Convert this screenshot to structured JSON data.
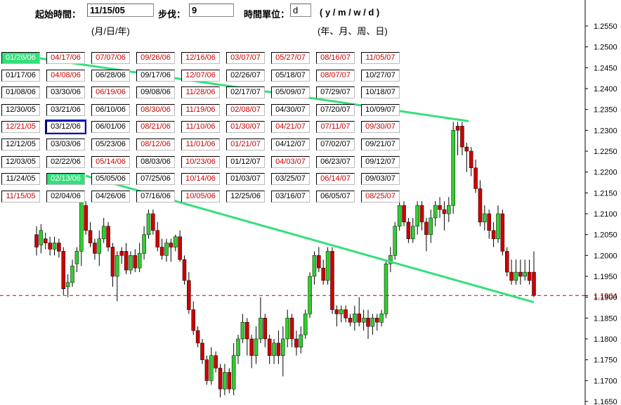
{
  "controls": {
    "start_label": "起始時間：",
    "start_value": "11/15/05",
    "start_hint": "(月/日/年)",
    "step_label": "步伐：",
    "step_value": "9",
    "unit_label": "時間單位：",
    "unit_value": "d",
    "unit_options": "( y / m / w / d )",
    "unit_hint": "(年、月、周、日)"
  },
  "date_grid": {
    "columns": [
      [
        "01/26/06",
        "01/17/06",
        "01/08/06",
        "12/30/05",
        "12/21/05",
        "12/12/05",
        "12/03/05",
        "11/24/05",
        "11/15/05"
      ],
      [
        "04/17/06",
        "04/08/06",
        "03/30/06",
        "03/21/06",
        "03/12/06",
        "03/03/06",
        "02/22/06",
        "02/13/06",
        "02/04/06"
      ],
      [
        "07/07/06",
        "06/28/06",
        "06/19/06",
        "06/10/06",
        "06/01/06",
        "05/23/06",
        "05/14/06",
        "05/05/06",
        "04/26/06"
      ],
      [
        "09/26/06",
        "09/17/06",
        "09/08/06",
        "08/30/06",
        "08/21/06",
        "08/12/06",
        "08/03/06",
        "07/25/06",
        "07/16/06"
      ],
      [
        "12/16/06",
        "12/07/06",
        "11/28/06",
        "11/19/06",
        "11/10/06",
        "11/01/06",
        "10/23/06",
        "10/14/06",
        "10/05/06"
      ],
      [
        "03/07/07",
        "02/26/07",
        "02/17/07",
        "02/08/07",
        "01/30/07",
        "01/21/07",
        "01/12/07",
        "01/03/07",
        "12/25/06"
      ],
      [
        "05/27/07",
        "05/18/07",
        "05/09/07",
        "04/30/07",
        "04/21/07",
        "04/12/07",
        "04/03/07",
        "03/25/07",
        "03/16/07"
      ],
      [
        "08/16/07",
        "08/07/07",
        "07/29/07",
        "07/20/07",
        "07/11/07",
        "07/02/07",
        "06/23/07",
        "06/14/07",
        "06/05/07"
      ],
      [
        "11/05/07",
        "10/27/07",
        "10/18/07",
        "10/09/07",
        "09/30/07",
        "09/21/07",
        "09/12/07",
        "09/03/07",
        "08/25/07"
      ]
    ],
    "red_cells": [
      "04/17/06",
      "07/07/06",
      "09/26/06",
      "12/16/06",
      "03/07/07",
      "05/27/07",
      "08/16/07",
      "11/05/07",
      "04/08/06",
      "12/07/06",
      "08/07/07",
      "06/19/06",
      "11/28/06",
      "08/30/06",
      "11/19/06",
      "02/08/07",
      "12/21/05",
      "08/21/06",
      "11/10/06",
      "01/30/07",
      "04/21/07",
      "07/11/07",
      "09/30/07",
      "08/12/06",
      "11/01/06",
      "01/21/07",
      "05/14/06",
      "10/23/06",
      "04/03/07",
      "10/14/06",
      "06/14/07",
      "11/15/05",
      "10/05/06",
      "08/25/07"
    ],
    "selected_cells": [
      "01/26/06",
      "02/13/06"
    ],
    "outlined_cell": "03/12/06",
    "selected_color": "#33e07a",
    "outline_color": "#0000cc",
    "red_color": "#cc0000"
  },
  "chart_data": {
    "type": "candlestick",
    "y_axis": {
      "side": "right",
      "min": 1.165,
      "max": 1.255,
      "tick_step": 0.005,
      "tick_labels": [
        "1.2550",
        "1.2500",
        "1.2450",
        "1.2400",
        "1.2350",
        "1.2300",
        "1.2250",
        "1.2200",
        "1.2150",
        "1.2100",
        "1.2050",
        "1.2000",
        "1.1950",
        "1.1904",
        "1.1900",
        "1.1850",
        "1.1800",
        "1.1750",
        "1.1700",
        "1.1650"
      ]
    },
    "current_price": 1.1904,
    "current_price_label": "1.1904",
    "current_price_color": "#cc0000",
    "up_color": "#33cc33",
    "down_color": "#cc0000",
    "trendlines": [
      {
        "from_date": "01/26/06",
        "from_price": 1.2475,
        "to_index": 130,
        "to_price": 1.2322,
        "color": "#33e07a"
      },
      {
        "from_date": "02/13/06",
        "from_price": 1.2205,
        "to_index": 148,
        "to_price": 1.1888,
        "color": "#33e07a"
      }
    ]
  }
}
